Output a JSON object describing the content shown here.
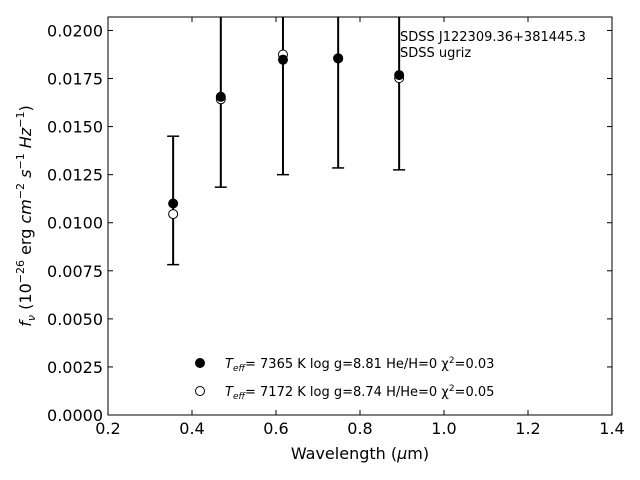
{
  "chart_data": {
    "type": "scatter",
    "title": "",
    "xlabel": "Wavelength (μm)",
    "ylabel": "f_ν (10^-26 erg cm^-2 s^-1 Hz^-1)",
    "xlim": [
      0.2,
      1.4
    ],
    "ylim": [
      0.0,
      0.0207
    ],
    "x_ticks": [
      "0.2",
      "0.4",
      "0.6",
      "0.8",
      "1.0",
      "1.2",
      "1.4"
    ],
    "y_ticks": [
      "0.0000",
      "0.0025",
      "0.0050",
      "0.0075",
      "0.0100",
      "0.0125",
      "0.0150",
      "0.0175",
      "0.0200"
    ],
    "annotations": [
      "SDSS J122309.36+381445.3",
      "SDSS ugriz"
    ],
    "legend_position": "lower-center",
    "grid": false,
    "observed": {
      "marker": "errorbar",
      "x": [
        0.3551,
        0.4686,
        0.6166,
        0.748,
        0.8932
      ],
      "y": [
        0.01115,
        0.01645,
        0.0186,
        0.0186,
        0.0176
      ],
      "err_low": [
        0.00782,
        0.01185,
        0.0125,
        0.01285,
        0.01275
      ],
      "err_high": [
        0.0145,
        0.0215,
        0.0215,
        0.0215,
        0.0215
      ]
    },
    "series": [
      {
        "name": "T_eff= 7365 K log g=8.81 He/H=0 χ²=0.03",
        "marker": "filled-circle",
        "x": [
          0.3551,
          0.4686,
          0.6166,
          0.748,
          0.8932
        ],
        "y": [
          0.011,
          0.01655,
          0.01848,
          0.01855,
          0.01768
        ]
      },
      {
        "name": "T_eff= 7172 K log g=8.74 H/He=0 χ²=0.05",
        "marker": "open-circle",
        "x": [
          0.3551,
          0.4686,
          0.6166,
          0.748,
          0.8932
        ],
        "y": [
          0.01045,
          0.01642,
          0.01875,
          0.01855,
          0.01752
        ]
      }
    ]
  },
  "legend": {
    "items": [
      {
        "teff_label": "T",
        "teff_sub": "eff",
        "rest": "=  7365 K  log g=8.81  He/H=0  χ",
        "chi_sup": "2",
        "chi_val": "=0.03"
      },
      {
        "teff_label": "T",
        "teff_sub": "eff",
        "rest": "=  7172 K  log g=8.74  H/He=0  χ",
        "chi_sup": "2",
        "chi_val": "=0.05"
      }
    ]
  },
  "labels": {
    "xlabel_main": "Wavelength (",
    "xlabel_mu": "μ",
    "xlabel_unit": "m)"
  }
}
